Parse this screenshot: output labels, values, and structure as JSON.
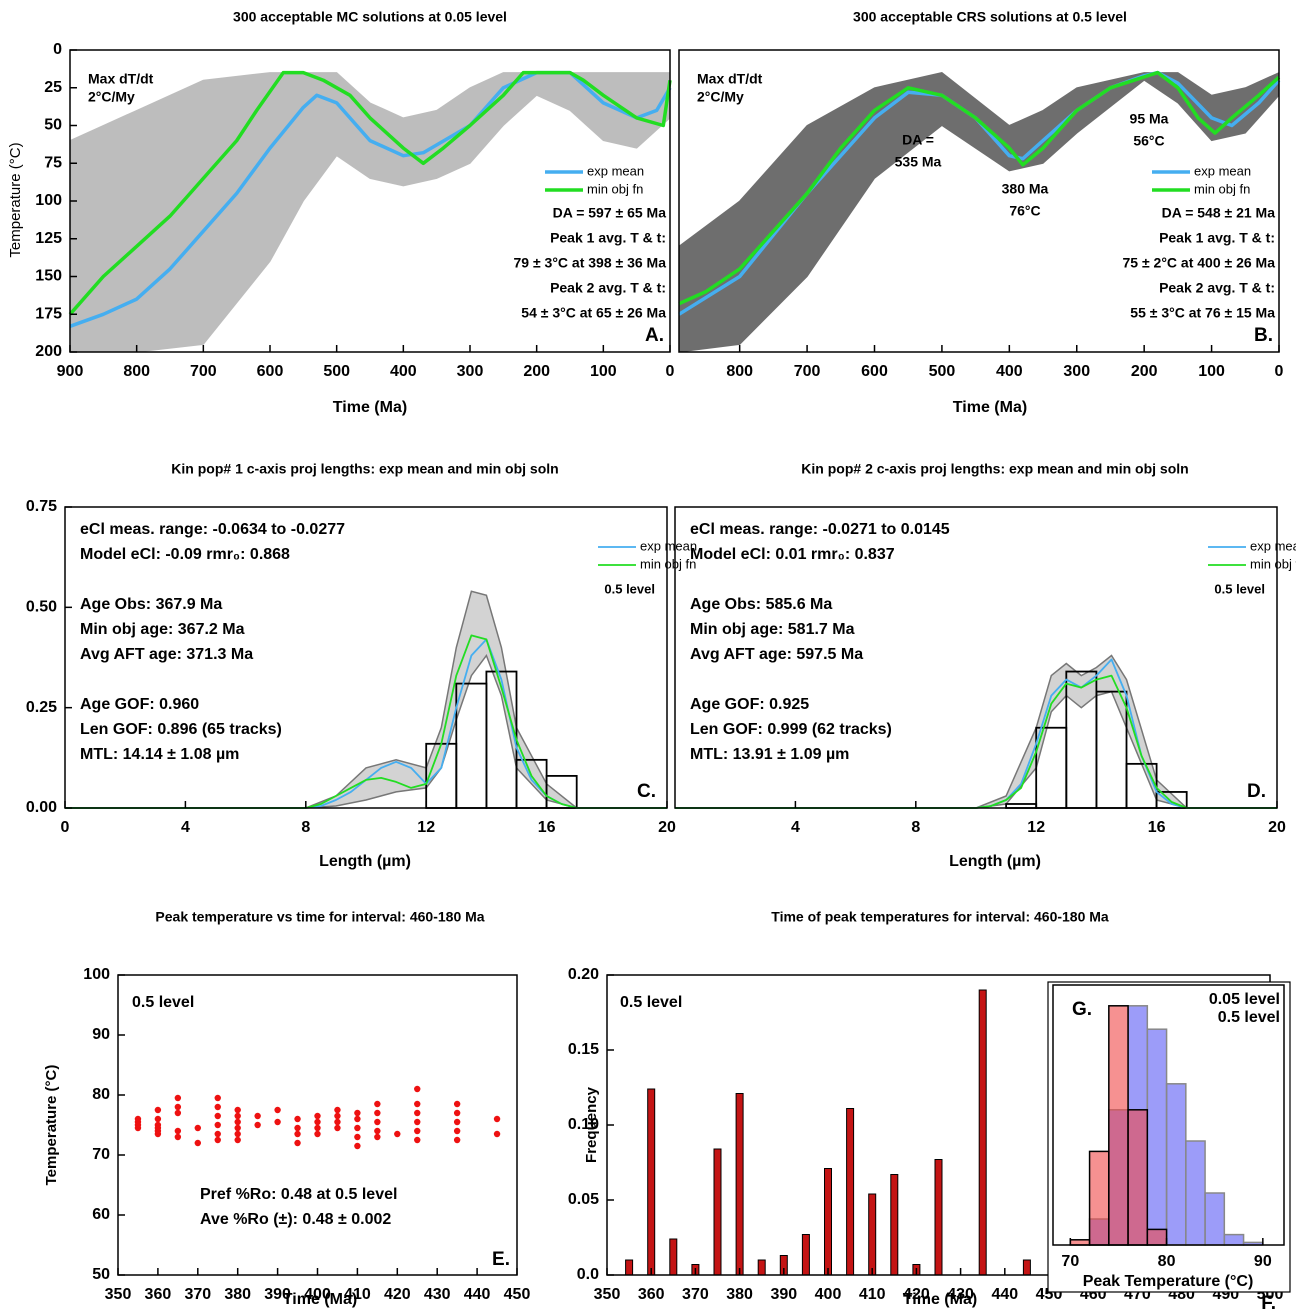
{
  "chart_data": [
    {
      "type": "line",
      "title": "300 acceptable MC solutions at 0.05 level",
      "xlabel": "Time (Ma)",
      "ylabel": "Temperature (°C)",
      "xlim": [
        900,
        0
      ],
      "ylim": [
        200,
        0
      ],
      "xticks": [
        900,
        800,
        700,
        600,
        500,
        400,
        300,
        200,
        100,
        0
      ],
      "yticks": [
        0,
        25,
        50,
        75,
        100,
        125,
        150,
        175,
        200
      ],
      "band": {
        "color": "#bdbdbd",
        "x": [
          900,
          800,
          700,
          600,
          550,
          500,
          450,
          400,
          350,
          300,
          250,
          200,
          150,
          100,
          50,
          0
        ],
        "low": [
          60,
          40,
          20,
          15,
          15,
          15,
          35,
          45,
          40,
          25,
          15,
          15,
          15,
          15,
          15,
          15
        ],
        "high": [
          200,
          200,
          195,
          140,
          100,
          70,
          85,
          90,
          85,
          75,
          50,
          30,
          40,
          60,
          65,
          45
        ]
      },
      "series": [
        {
          "name": "exp mean",
          "color": "#45aef0",
          "x": [
            900,
            850,
            800,
            750,
            700,
            650,
            600,
            550,
            530,
            500,
            450,
            400,
            370,
            300,
            250,
            200,
            150,
            100,
            50,
            20,
            0
          ],
          "values": [
            183,
            175,
            165,
            145,
            120,
            95,
            65,
            38,
            30,
            35,
            60,
            70,
            68,
            50,
            25,
            15,
            15,
            35,
            45,
            40,
            25
          ]
        },
        {
          "name": "min obj fn",
          "color": "#22dd22",
          "x": [
            900,
            850,
            800,
            750,
            700,
            650,
            620,
            580,
            550,
            520,
            480,
            450,
            400,
            370,
            340,
            300,
            250,
            220,
            150,
            130,
            100,
            50,
            10,
            0
          ],
          "values": [
            175,
            150,
            130,
            110,
            85,
            60,
            40,
            15,
            15,
            20,
            30,
            45,
            65,
            75,
            65,
            50,
            30,
            15,
            15,
            20,
            30,
            45,
            50,
            20
          ]
        }
      ],
      "annotations": [
        "Max dT/dt",
        "2°C/My",
        "DA = 597 ± 65 Ma",
        "Peak 1 avg. T & t:",
        "79 ± 3°C at 398 ± 36 Ma",
        "Peak 2 avg. T & t:",
        "54 ± 3°C at 65 ± 26 Ma"
      ],
      "panel_label": "A."
    },
    {
      "type": "line",
      "title": "300 acceptable CRS solutions at 0.5 level",
      "xlabel": "Time (Ma)",
      "xlim": [
        890,
        0
      ],
      "ylim": [
        200,
        0
      ],
      "xticks": [
        800,
        700,
        600,
        500,
        400,
        300,
        200,
        100,
        0
      ],
      "band": {
        "color": "#6e6e6e",
        "x": [
          890,
          800,
          700,
          600,
          500,
          400,
          350,
          300,
          200,
          150,
          100,
          50,
          0
        ],
        "low": [
          130,
          100,
          50,
          25,
          15,
          50,
          40,
          25,
          15,
          15,
          30,
          25,
          15
        ],
        "high": [
          200,
          195,
          150,
          85,
          50,
          80,
          75,
          55,
          20,
          35,
          60,
          55,
          30
        ]
      },
      "series": [
        {
          "name": "exp mean",
          "color": "#45aef0",
          "x": [
            890,
            800,
            700,
            600,
            550,
            500,
            450,
            400,
            380,
            350,
            300,
            250,
            200,
            180,
            150,
            100,
            70,
            30,
            0
          ],
          "values": [
            175,
            150,
            95,
            45,
            28,
            30,
            45,
            70,
            72,
            60,
            40,
            25,
            17,
            15,
            22,
            45,
            50,
            35,
            20
          ]
        },
        {
          "name": "min obj fn",
          "color": "#22dd22",
          "x": [
            890,
            850,
            800,
            750,
            700,
            650,
            600,
            550,
            500,
            450,
            400,
            380,
            350,
            300,
            250,
            180,
            150,
            120,
            95,
            70,
            30,
            0
          ],
          "values": [
            168,
            160,
            145,
            120,
            95,
            65,
            40,
            25,
            30,
            45,
            65,
            76,
            65,
            40,
            25,
            15,
            25,
            45,
            55,
            45,
            30,
            18
          ]
        }
      ],
      "annotations": [
        "Max dT/dt",
        "2°C/My",
        "DA = 548 ± 21 Ma",
        "Peak 1 avg. T & t:",
        "75 ± 2°C at 400 ± 26 Ma",
        "Peak 2 avg. T & t:",
        "55 ± 3°C at 76 ± 15 Ma",
        {
          "text": "DA =",
          "color": "#22dd22"
        },
        {
          "text": "535 Ma",
          "color": "#22dd22"
        },
        {
          "text": "380 Ma",
          "color": "#22dd22"
        },
        {
          "text": "76°C",
          "color": "#22dd22"
        },
        {
          "text": "95 Ma",
          "color": "#22dd22"
        },
        {
          "text": "56°C",
          "color": "#22dd22"
        }
      ],
      "panel_label": "B."
    },
    {
      "type": "histogram",
      "title": "Kin pop# 1 c-axis proj lengths: exp mean and min obj soln",
      "xlabel": "Length (µm)",
      "xlim": [
        0,
        20
      ],
      "ylim": [
        0,
        0.75
      ],
      "xticks": [
        0,
        4,
        8,
        12,
        16,
        20
      ],
      "yticks": [
        {
          "value": 0,
          "label": "0.00"
        },
        0.25,
        {
          "value": 0.5,
          "label": "0.50"
        },
        0.75
      ],
      "bins": [
        12,
        13,
        14,
        15,
        16,
        17
      ],
      "counts": [
        0.16,
        0.31,
        0.34,
        0.12,
        0.08
      ],
      "band": {
        "color": "#d3d3d3",
        "x": [
          0,
          8,
          9,
          10,
          11,
          12,
          12.5,
          13,
          13.5,
          14,
          14.5,
          15,
          16,
          17,
          20
        ],
        "low": [
          0,
          0,
          0.005,
          0.02,
          0.04,
          0.05,
          0.1,
          0.22,
          0.33,
          0.38,
          0.28,
          0.1,
          0.02,
          0,
          0
        ],
        "high": [
          0,
          0,
          0.03,
          0.1,
          0.12,
          0.1,
          0.2,
          0.4,
          0.54,
          0.53,
          0.4,
          0.2,
          0.06,
          0,
          0
        ]
      },
      "series": [
        {
          "name": "exp mean",
          "color": "#45aef0",
          "x": [
            0,
            8,
            8.5,
            9,
            9.5,
            10,
            10.5,
            11,
            11.5,
            12,
            12.5,
            13,
            13.5,
            14,
            14.5,
            15,
            15.5,
            16,
            16.5,
            17,
            20
          ],
          "values": [
            0,
            0,
            0.005,
            0.02,
            0.04,
            0.07,
            0.1,
            0.115,
            0.1,
            0.06,
            0.1,
            0.25,
            0.38,
            0.42,
            0.32,
            0.15,
            0.07,
            0.03,
            0.01,
            0,
            0
          ]
        },
        {
          "name": "min obj fn",
          "color": "#22dd22",
          "x": [
            0,
            8,
            8.5,
            9,
            9.5,
            10,
            10.5,
            11,
            11.5,
            12,
            12.5,
            13,
            13.5,
            14,
            14.5,
            15,
            15.5,
            16,
            16.5,
            17,
            20
          ],
          "values": [
            0,
            0,
            0.01,
            0.03,
            0.05,
            0.07,
            0.075,
            0.065,
            0.05,
            0.06,
            0.16,
            0.33,
            0.43,
            0.42,
            0.3,
            0.17,
            0.08,
            0.03,
            0.01,
            0,
            0
          ]
        }
      ],
      "legend_note": "0.5 level",
      "annotations": [
        "eCl meas. range: -0.0634 to -0.0277",
        "Model eCl: -0.09 rmr₀: 0.868",
        "Age Obs: 367.9 Ma",
        "Min obj age: 367.2 Ma",
        "Avg AFT age: 371.3 Ma",
        "Age GOF: 0.960",
        "Len GOF: 0.896 (65 tracks)",
        "MTL: 14.14 ± 1.08 µm"
      ],
      "panel_label": "C."
    },
    {
      "type": "histogram",
      "title": "Kin pop# 2 c-axis proj lengths: exp mean and min obj soln",
      "xlabel": "Length (µm)",
      "xlim": [
        0,
        20
      ],
      "ylim": [
        0,
        0.75
      ],
      "xticks": [
        4,
        8,
        12,
        16,
        20
      ],
      "bins": [
        11,
        12,
        13,
        14,
        15,
        16,
        17
      ],
      "counts": [
        0.01,
        0.2,
        0.34,
        0.29,
        0.11,
        0.04
      ],
      "band": {
        "color": "#d3d3d3",
        "x": [
          0,
          10,
          11,
          12,
          12.5,
          13,
          13.5,
          14,
          14.5,
          15,
          16,
          17,
          20
        ],
        "low": [
          0,
          0,
          0.01,
          0.1,
          0.24,
          0.28,
          0.25,
          0.28,
          0.29,
          0.2,
          0.02,
          0,
          0
        ],
        "high": [
          0,
          0,
          0.03,
          0.2,
          0.33,
          0.36,
          0.33,
          0.35,
          0.38,
          0.32,
          0.07,
          0,
          0
        ]
      },
      "series": [
        {
          "name": "exp mean",
          "color": "#45aef0",
          "x": [
            0,
            10,
            10.5,
            11,
            11.5,
            12,
            12.5,
            13,
            13.5,
            14,
            14.5,
            15,
            15.5,
            16,
            16.5,
            17,
            20
          ],
          "values": [
            0,
            0,
            0.005,
            0.02,
            0.06,
            0.16,
            0.28,
            0.32,
            0.3,
            0.33,
            0.37,
            0.28,
            0.13,
            0.04,
            0.01,
            0,
            0
          ]
        },
        {
          "name": "min obj fn",
          "color": "#22dd22",
          "x": [
            0,
            10,
            10.5,
            11,
            11.5,
            12,
            12.5,
            13,
            13.5,
            14,
            14.5,
            15,
            15.5,
            16,
            16.5,
            17,
            20
          ],
          "values": [
            0,
            0,
            0.005,
            0.02,
            0.05,
            0.14,
            0.26,
            0.31,
            0.3,
            0.32,
            0.33,
            0.25,
            0.13,
            0.05,
            0.015,
            0,
            0
          ]
        }
      ],
      "legend_note": "0.5 level",
      "annotations": [
        "eCl meas. range: -0.0271 to 0.0145",
        "Model eCl: 0.01 rmr₀: 0.837",
        "Age Obs: 585.6 Ma",
        "Min obj age: 581.7 Ma",
        "Avg AFT age: 597.5 Ma",
        "Age GOF: 0.925",
        "Len GOF: 0.999 (62 tracks)",
        "MTL: 13.91 ± 1.09 µm"
      ],
      "panel_label": "D."
    },
    {
      "type": "scatter",
      "title": "Peak temperature vs time for interval: 460-180 Ma",
      "xlabel": "Time (Ma)",
      "ylabel": "Temperature (°C)",
      "xlim": [
        350,
        450
      ],
      "ylim": [
        50,
        100
      ],
      "xticks": [
        350,
        360,
        370,
        380,
        390,
        400,
        410,
        420,
        430,
        440,
        450
      ],
      "yticks": [
        50,
        60,
        70,
        80,
        90,
        100
      ],
      "color": "#ee1111",
      "x": [
        355,
        355,
        355,
        355,
        360,
        360,
        360,
        360,
        360,
        360,
        365,
        365,
        365,
        365,
        365,
        370,
        370,
        375,
        375,
        375,
        375,
        375,
        375,
        380,
        380,
        380,
        380,
        380,
        380,
        385,
        385,
        390,
        390,
        395,
        395,
        395,
        395,
        400,
        400,
        400,
        400,
        405,
        405,
        405,
        405,
        410,
        410,
        410,
        410,
        410,
        415,
        415,
        415,
        415,
        415,
        420,
        425,
        425,
        425,
        425,
        425,
        425,
        435,
        435,
        435,
        435,
        435,
        445,
        445
      ],
      "y": [
        74.5,
        75.5,
        76,
        75,
        73.5,
        74,
        75,
        76,
        77.5,
        74.5,
        73,
        74,
        77,
        78,
        79.5,
        72,
        74.5,
        72.5,
        73.5,
        75,
        76.5,
        78,
        79.5,
        72.5,
        73.5,
        74.5,
        75.5,
        76.5,
        77.5,
        75,
        76.5,
        75.5,
        77.5,
        72,
        73.5,
        74.5,
        76,
        73.5,
        74.5,
        75.5,
        76.5,
        74.5,
        75.5,
        76.5,
        77.5,
        71.5,
        73,
        74.5,
        76,
        77,
        73,
        74,
        75.5,
        77,
        78.5,
        73.5,
        72.5,
        74,
        75.5,
        77,
        78.5,
        81,
        72.5,
        74,
        75.5,
        77,
        78.5,
        73.5,
        76
      ],
      "annotations": [
        "0.5 level",
        "Pref %Ro:  0.48 at 0.5 level",
        "Ave %Ro (±):  0.48 ± 0.002"
      ],
      "panel_label": "E."
    },
    {
      "type": "bar",
      "title": "Time of peak temperatures for interval:  460-180 Ma",
      "xlabel": "Time (Ma)",
      "ylabel": "Frequency",
      "xlim": [
        350,
        500
      ],
      "ylim": [
        0,
        0.2
      ],
      "xticks": [
        350,
        360,
        370,
        380,
        390,
        400,
        410,
        420,
        430,
        440,
        450,
        460,
        470,
        480,
        490,
        500
      ],
      "yticks": [
        {
          "value": 0,
          "label": "0.0"
        },
        0.05,
        {
          "value": 0.1,
          "label": "0.10"
        },
        0.15,
        {
          "value": 0.2,
          "label": "0.20"
        }
      ],
      "color": "#c41414",
      "x": [
        355,
        360,
        365,
        370,
        375,
        380,
        385,
        390,
        395,
        400,
        405,
        410,
        415,
        420,
        425,
        435,
        445
      ],
      "values": [
        0.01,
        0.124,
        0.024,
        0.007,
        0.084,
        0.121,
        0.01,
        0.013,
        0.027,
        0.071,
        0.111,
        0.054,
        0.067,
        0.007,
        0.077,
        0.19,
        0.01
      ],
      "annotations": [
        "0.5 level"
      ],
      "panel_label": "F."
    },
    {
      "type": "histogram",
      "xlabel": "Peak Temperature (°C)",
      "xlim": [
        68.2,
        92.2
      ],
      "ylim": [
        0,
        1
      ],
      "xticks": [
        70,
        80,
        90
      ],
      "bins": [
        70,
        72,
        74,
        76,
        78,
        80,
        82,
        84,
        86,
        88,
        90
      ],
      "series": [
        {
          "name": "0.05 level",
          "color": "#5a5af5",
          "edgecolor": "#888888",
          "opacity": 0.6,
          "counts": [
            0,
            0.1,
            0.52,
            0.92,
            0.83,
            0.62,
            0.4,
            0.2,
            0.04,
            0.01
          ]
        },
        {
          "name": "0.5 level",
          "color": "#f04848",
          "edgecolor": "#000000",
          "opacity": 0.6,
          "counts": [
            0.02,
            0.36,
            0.92,
            0.52,
            0.06,
            0,
            0,
            0,
            0,
            0
          ]
        }
      ],
      "panel_label": "G."
    }
  ]
}
